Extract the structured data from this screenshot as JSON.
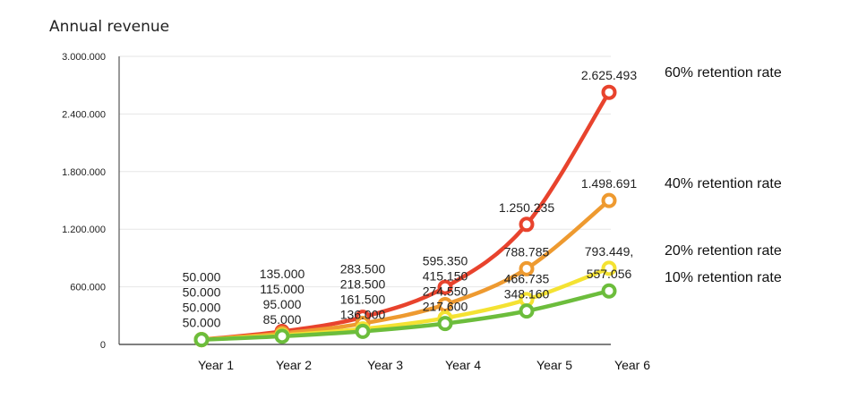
{
  "chart_data": {
    "type": "line",
    "title": "Annual revenue",
    "xlabel": "",
    "ylabel": "",
    "categories": [
      "Year 1",
      "Year 2",
      "Year 3",
      "Year 4",
      "Year 5",
      "Year 6"
    ],
    "ylim": [
      0,
      3000000
    ],
    "yticks": [
      0,
      600000,
      1200000,
      1800000,
      2400000,
      3000000
    ],
    "ytick_labels": [
      "0",
      "600.000",
      "1.200.000",
      "1.800.000",
      "2.400.000",
      "3.000.000"
    ],
    "grid": true,
    "legend_placement": "right",
    "series": [
      {
        "name": "60% retention rate",
        "color": "#e8432d",
        "values": [
          50000,
          135000,
          283500,
          595350,
          1250235,
          2625493
        ],
        "labels": [
          "50.000",
          "135.000",
          "283.500",
          "595.350",
          "1.250.235",
          "2.625.493"
        ]
      },
      {
        "name": "40% retention rate",
        "color": "#ee9a30",
        "values": [
          50000,
          115000,
          218500,
          415150,
          788785,
          1498691
        ],
        "labels": [
          "50.000",
          "115.000",
          "218.500",
          "415.150",
          "788.785",
          "1.498.691"
        ]
      },
      {
        "name": "20% retention rate",
        "color": "#f4e232",
        "values": [
          50000,
          95000,
          161500,
          274550,
          466735,
          793449
        ],
        "labels": [
          "50.000",
          "95.000",
          "161.500",
          "274.550",
          "466.735",
          "793.449,"
        ]
      },
      {
        "name": "10% retention rate",
        "color": "#6cbd3c",
        "values": [
          50000,
          85000,
          136000,
          217600,
          348160,
          557056
        ],
        "labels": [
          "50.000",
          "85.000",
          "136.000",
          "217.600",
          "348.160",
          "557.056"
        ]
      }
    ]
  }
}
